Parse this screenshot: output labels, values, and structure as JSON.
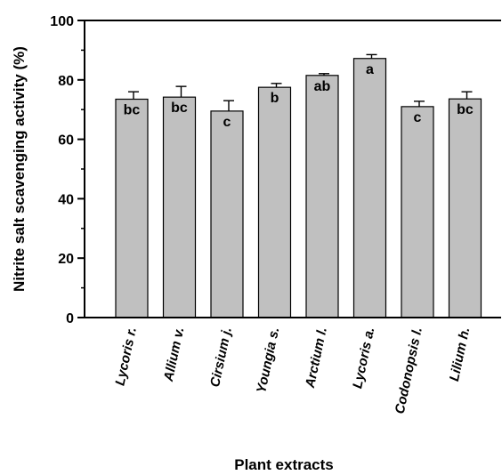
{
  "chart_data": {
    "type": "bar",
    "title": "",
    "xlabel": "Plant extracts",
    "ylabel": "Nitrite salt scavenging activity (%)",
    "ylim": [
      0,
      100
    ],
    "yticks": [
      "0",
      "20",
      "40",
      "60",
      "80",
      "100"
    ],
    "grid": false,
    "legend": "none",
    "bar_color": "#c0c0c0",
    "categories": [
      "Lycoris r.",
      "Allium v.",
      "Cirsium j.",
      "Youngia s.",
      "Arctium l.",
      "Lycoris a.",
      "Codonopsis l.",
      "Lilium h."
    ],
    "values": [
      73.5,
      74.2,
      69.5,
      77.5,
      81.5,
      87.2,
      71.0,
      73.6
    ],
    "errors": [
      2.5,
      3.6,
      3.5,
      1.3,
      0.6,
      1.3,
      1.8,
      2.4
    ],
    "labels": [
      "bc",
      "bc",
      "c",
      "b",
      "ab",
      "a",
      "c",
      "bc"
    ]
  }
}
